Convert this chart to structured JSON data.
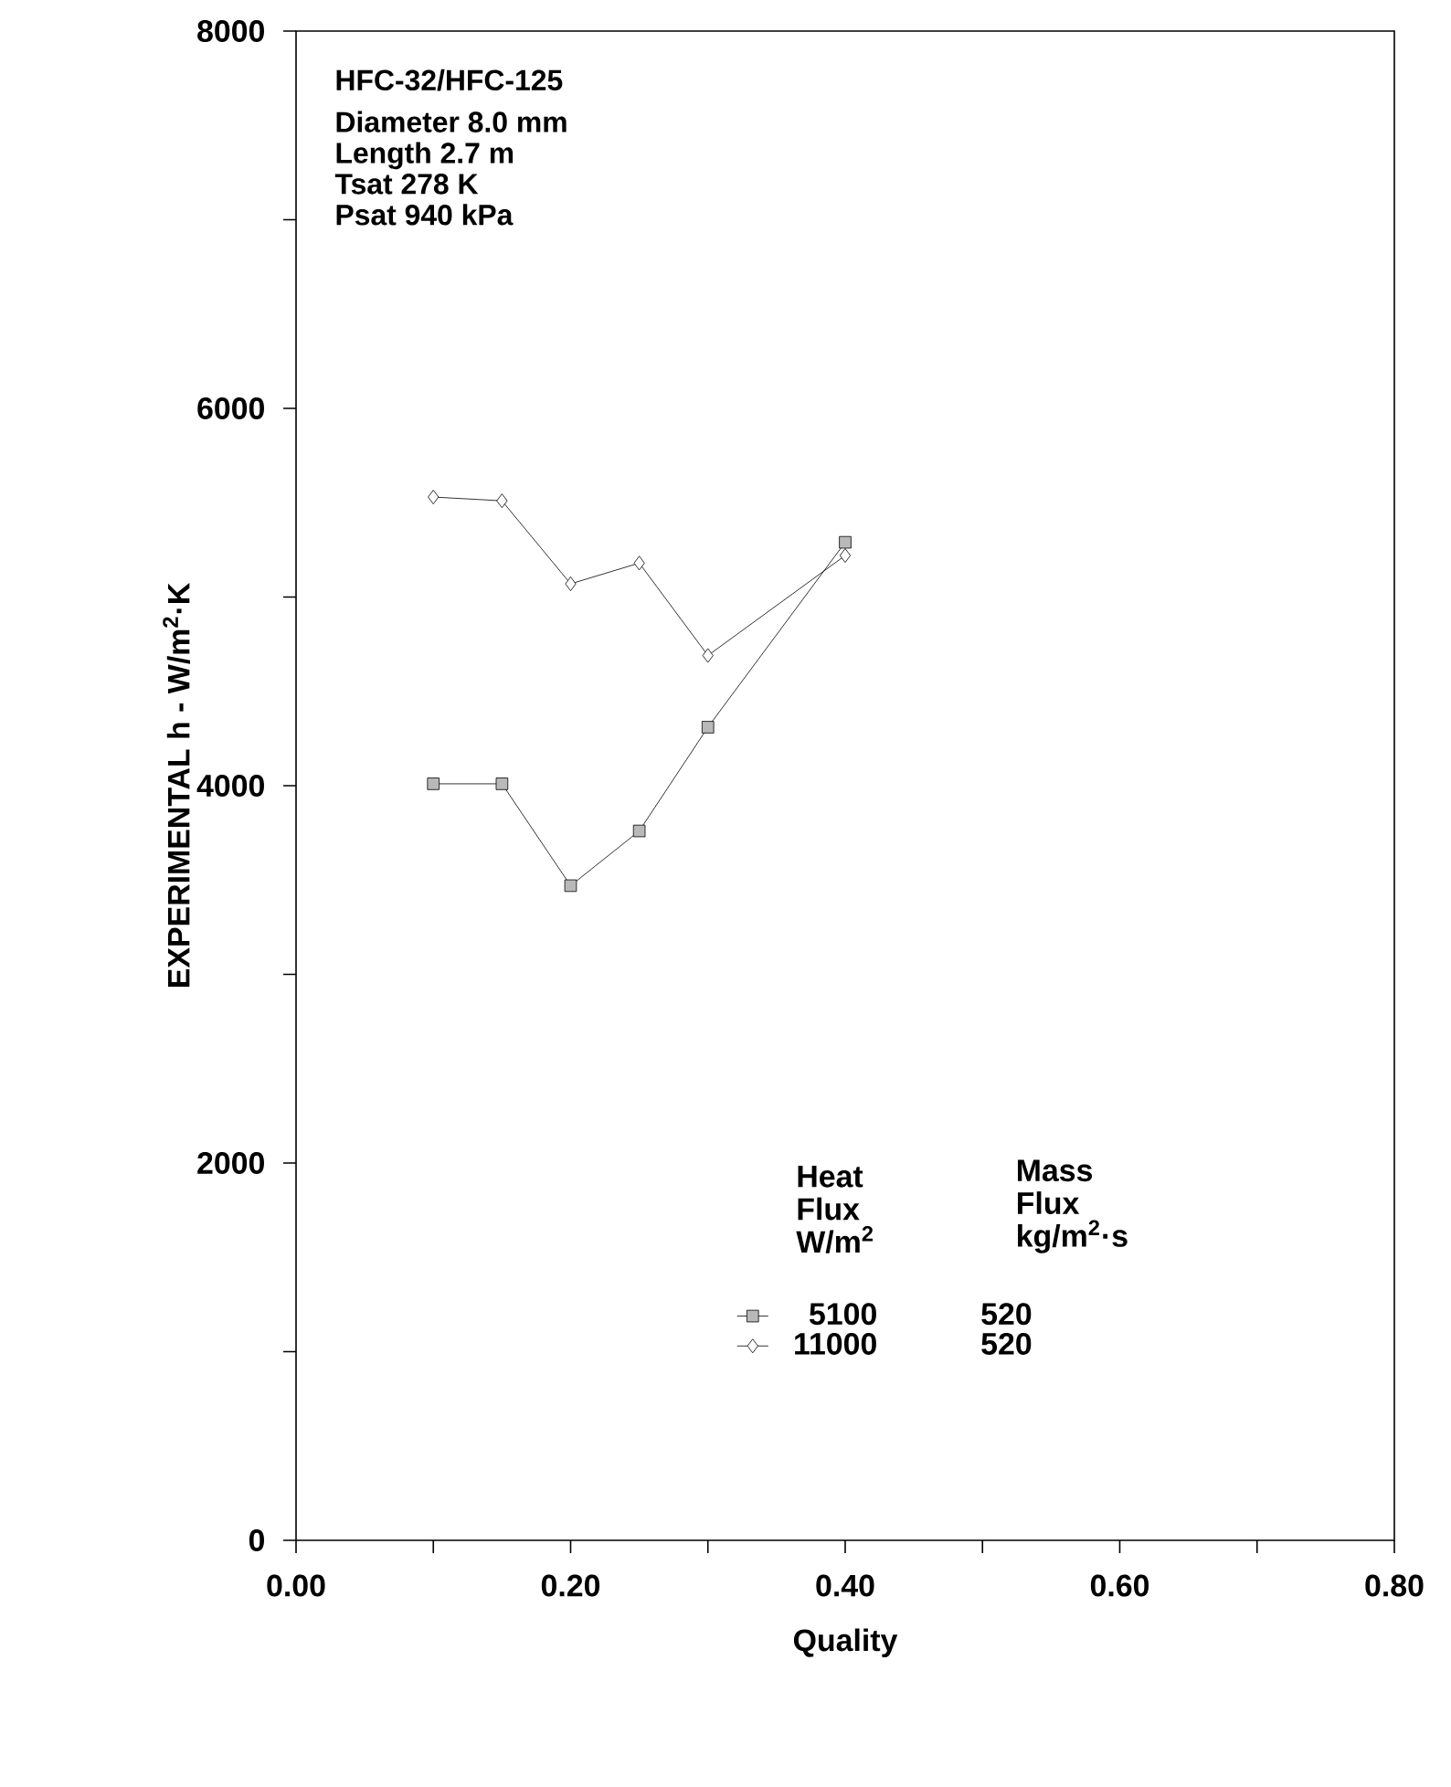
{
  "chart_data": {
    "type": "line",
    "xlabel": "Quality",
    "ylabel": "EXPERIMENTAL h - W/m$^{2}$·K",
    "x": [
      0.1,
      0.15,
      0.2,
      0.25,
      0.3,
      0.4
    ],
    "series": [
      {
        "name": "5100",
        "color": "#000000",
        "marker": "square",
        "values": [
          4010,
          4010,
          3470,
          3760,
          4310,
          5290
        ]
      },
      {
        "name": "11000",
        "color": "#000000",
        "marker": "diamond",
        "values": [
          5530,
          5510,
          5070,
          5180,
          4690,
          5220
        ]
      }
    ],
    "xlim": [
      0,
      0.8
    ],
    "ylim": [
      0,
      8000
    ],
    "xticks": [
      {
        "value": 0,
        "label": "0.00"
      },
      {
        "value": 0.1,
        "label": null
      },
      {
        "value": 0.2,
        "label": "0.20"
      },
      {
        "value": 0.3,
        "label": null
      },
      {
        "value": 0.4,
        "label": "0.40"
      },
      {
        "value": 0.5,
        "label": null
      },
      {
        "value": 0.6,
        "label": "0.60"
      },
      {
        "value": 0.7,
        "label": null
      },
      {
        "value": 0.8,
        "label": "0.80"
      }
    ],
    "yticks": [
      0,
      {
        "value": 1000,
        "label": null
      },
      2000,
      {
        "value": 3000,
        "label": null
      },
      4000,
      {
        "value": 5000,
        "label": null
      },
      6000,
      {
        "value": 7000,
        "label": null
      },
      8000
    ],
    "legend": "bottom right",
    "legend_title": "Heat Flux W/m$^{2}$",
    "line_style": "solid",
    "grid": false,
    "annotations": [
      "HFC-32/HFC-125",
      "Diameter 8.0 mm",
      "Length 2.7 m",
      "Tsat 278 K",
      "Psat 940 kPa",
      "Mass Flux kg/m$^{2}$·s",
      "520",
      "520"
    ]
  }
}
